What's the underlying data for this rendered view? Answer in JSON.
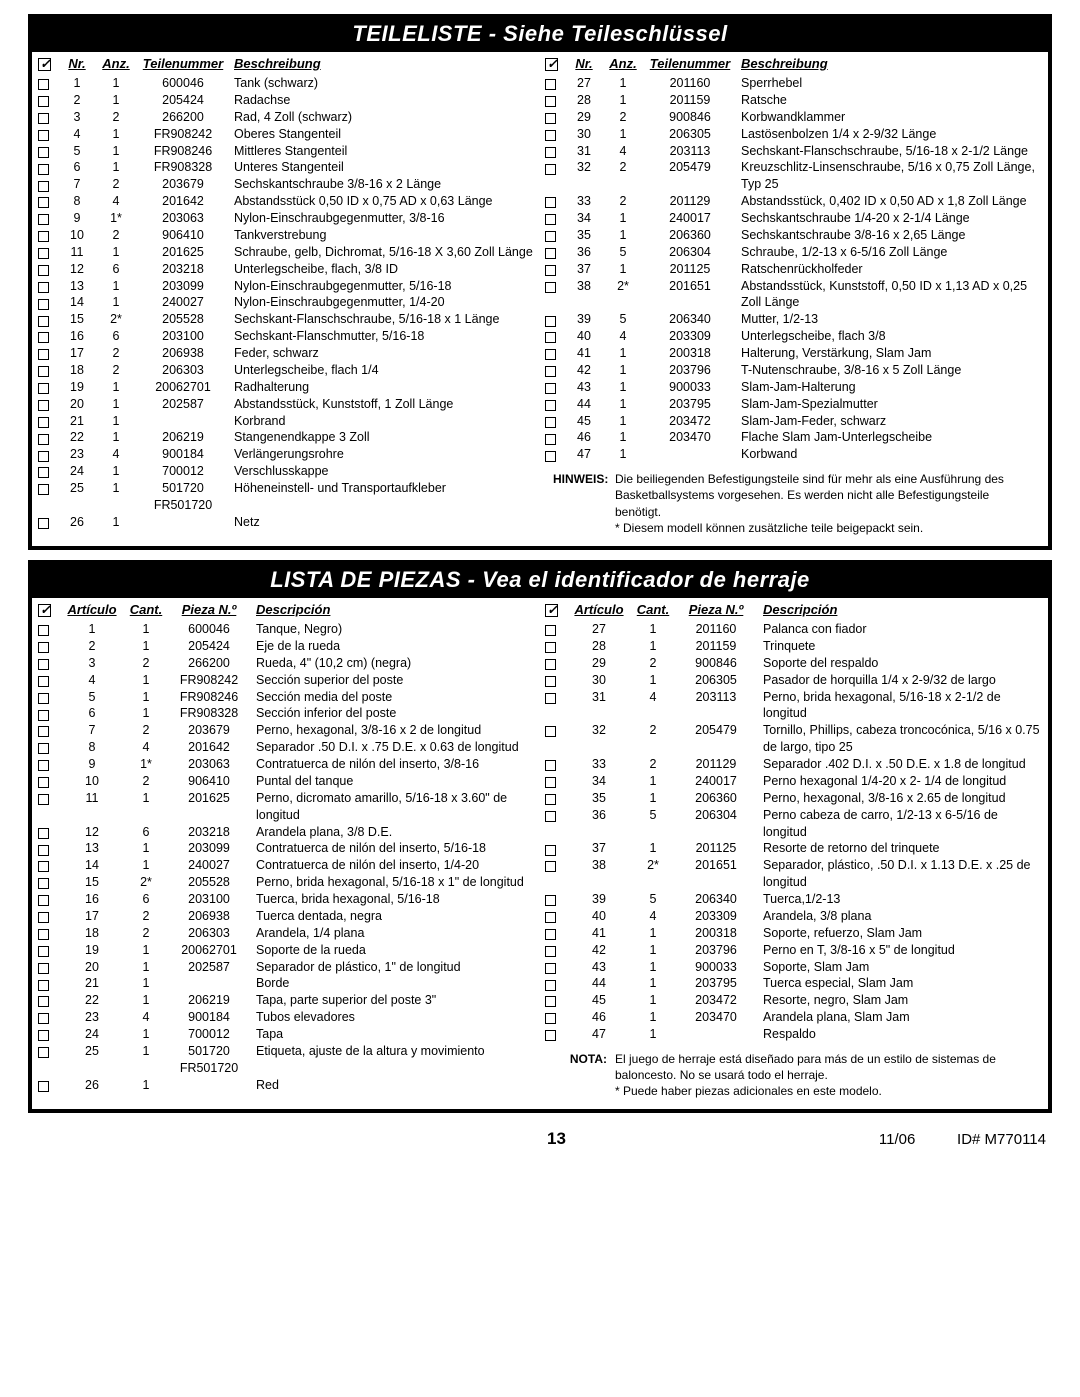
{
  "de": {
    "title": "TEILELISTE - Siehe Teileschlüssel",
    "headers": {
      "nr": "Nr.",
      "qty": "Anz.",
      "part": "Teilenummer",
      "desc": "Beschreibung"
    },
    "left": [
      {
        "n": "1",
        "q": "1",
        "p": "600046",
        "d": "Tank (schwarz)"
      },
      {
        "n": "2",
        "q": "1",
        "p": "205424",
        "d": "Radachse"
      },
      {
        "n": "3",
        "q": "2",
        "p": "266200",
        "d": "Rad, 4 Zoll (schwarz)"
      },
      {
        "n": "4",
        "q": "1",
        "p": "FR908242",
        "d": "Oberes Stangenteil"
      },
      {
        "n": "5",
        "q": "1",
        "p": "FR908246",
        "d": "Mittleres Stangenteil"
      },
      {
        "n": "6",
        "q": "1",
        "p": "FR908328",
        "d": "Unteres Stangenteil"
      },
      {
        "n": "7",
        "q": "2",
        "p": "203679",
        "d": "Sechskantschraube 3/8-16 x 2 Länge"
      },
      {
        "n": "8",
        "q": "4",
        "p": "201642",
        "d": "Abstandsstück 0,50 ID x 0,75 AD x 0,63 Länge"
      },
      {
        "n": "9",
        "q": "1*",
        "p": "203063",
        "d": "Nylon-Einschraubgegenmutter, 3/8-16"
      },
      {
        "n": "10",
        "q": "2",
        "p": "906410",
        "d": "Tankverstrebung"
      },
      {
        "n": "11",
        "q": "1",
        "p": "201625",
        "d": "Schraube, gelb, Dichromat, 5/16-18 X 3,60 Zoll Länge"
      },
      {
        "n": "12",
        "q": "6",
        "p": "203218",
        "d": "Unterlegscheibe, flach, 3/8 ID"
      },
      {
        "n": "13",
        "q": "1",
        "p": "203099",
        "d": "Nylon-Einschraubgegenmutter, 5/16-18"
      },
      {
        "n": "14",
        "q": "1",
        "p": "240027",
        "d": "Nylon-Einschraubgegenmutter, 1/4-20"
      },
      {
        "n": "15",
        "q": "2*",
        "p": "205528",
        "d": "Sechskant-Flanschschraube, 5/16-18 x 1 Länge"
      },
      {
        "n": "16",
        "q": "6",
        "p": "203100",
        "d": "Sechskant-Flanschmutter, 5/16-18"
      },
      {
        "n": "17",
        "q": "2",
        "p": "206938",
        "d": "Feder, schwarz"
      },
      {
        "n": "18",
        "q": "2",
        "p": "206303",
        "d": "Unterlegscheibe, flach 1/4"
      },
      {
        "n": "19",
        "q": "1",
        "p": "20062701",
        "d": "Radhalterung"
      },
      {
        "n": "20",
        "q": "1",
        "p": "202587",
        "d": "Abstandsstück, Kunststoff, 1 Zoll Länge"
      },
      {
        "n": "21",
        "q": "1",
        "p": "",
        "d": "Korbrand"
      },
      {
        "n": "22",
        "q": "1",
        "p": "206219",
        "d": "Stangenendkappe 3 Zoll"
      },
      {
        "n": "23",
        "q": "4",
        "p": "900184",
        "d": "Verlängerungsrohre"
      },
      {
        "n": "24",
        "q": "1",
        "p": "700012",
        "d": "Verschlusskappe"
      },
      {
        "n": "25",
        "q": "1",
        "p": "501720 FR501720",
        "d": "Höheneinstell- und Transportaufkleber"
      },
      {
        "n": "26",
        "q": "1",
        "p": "",
        "d": "Netz"
      }
    ],
    "right": [
      {
        "n": "27",
        "q": "1",
        "p": "201160",
        "d": "Sperrhebel"
      },
      {
        "n": "28",
        "q": "1",
        "p": "201159",
        "d": "Ratsche"
      },
      {
        "n": "29",
        "q": "2",
        "p": "900846",
        "d": "Korbwandklammer"
      },
      {
        "n": "30",
        "q": "1",
        "p": "206305",
        "d": "Lastösenbolzen 1/4 x 2-9/32 Länge"
      },
      {
        "n": "31",
        "q": "4",
        "p": "203113",
        "d": "Sechskant-Flanschschraube, 5/16-18 x 2-1/2 Länge"
      },
      {
        "n": "32",
        "q": "2",
        "p": "205479",
        "d": "Kreuzschlitz-Linsenschraube, 5/16 x 0,75 Zoll Länge, Typ 25"
      },
      {
        "n": "33",
        "q": "2",
        "p": "201129",
        "d": "Abstandsstück, 0,402 ID x 0,50 AD x 1,8 Zoll Länge"
      },
      {
        "n": "34",
        "q": "1",
        "p": "240017",
        "d": "Sechskantschraube 1/4-20 x 2-1/4 Länge"
      },
      {
        "n": "35",
        "q": "1",
        "p": "206360",
        "d": "Sechskantschraube 3/8-16 x 2,65 Länge"
      },
      {
        "n": "36",
        "q": "5",
        "p": "206304",
        "d": "Schraube, 1/2-13 x 6-5/16 Zoll Länge"
      },
      {
        "n": "37",
        "q": "1",
        "p": "201125",
        "d": "Ratschenrückholfeder"
      },
      {
        "n": "38",
        "q": "2*",
        "p": "201651",
        "d": "Abstandsstück, Kunststoff, 0,50 ID x 1,13 AD x 0,25 Zoll Länge"
      },
      {
        "n": "39",
        "q": "5",
        "p": "206340",
        "d": "Mutter, 1/2-13"
      },
      {
        "n": "40",
        "q": "4",
        "p": "203309",
        "d": "Unterlegscheibe, flach 3/8"
      },
      {
        "n": "41",
        "q": "1",
        "p": "200318",
        "d": "Halterung, Verstärkung, Slam Jam"
      },
      {
        "n": "42",
        "q": "1",
        "p": "203796",
        "d": "T-Nutenschraube, 3/8-16 x 5 Zoll Länge"
      },
      {
        "n": "43",
        "q": "1",
        "p": "900033",
        "d": "Slam-Jam-Halterung"
      },
      {
        "n": "44",
        "q": "1",
        "p": "203795",
        "d": "Slam-Jam-Spezialmutter"
      },
      {
        "n": "45",
        "q": "1",
        "p": "203472",
        "d": "Slam-Jam-Feder, schwarz"
      },
      {
        "n": "46",
        "q": "1",
        "p": "203470",
        "d": "Flache Slam Jam-Unterlegscheibe"
      },
      {
        "n": "47",
        "q": "1",
        "p": "",
        "d": "Korbwand"
      }
    ],
    "note_label": "HINWEIS:",
    "note_text": "Die beiliegenden Befestigungsteile sind für mehr als eine Ausführung des Basketballsystems vorgesehen.  Es werden nicht alle Befestigungsteile benötigt.",
    "note_star": "*  Diesem modell können zusätzliche teile beigepackt sein."
  },
  "es": {
    "title": "LISTA DE PIEZAS - Vea el identificador de herraje",
    "headers": {
      "nr": "Artículo",
      "qty": "Cant.",
      "part": "Pieza N.º",
      "desc": "Descripción"
    },
    "left": [
      {
        "n": "1",
        "q": "1",
        "p": "600046",
        "d": "Tanque, Negro)"
      },
      {
        "n": "2",
        "q": "1",
        "p": "205424",
        "d": "Eje de la rueda"
      },
      {
        "n": "3",
        "q": "2",
        "p": "266200",
        "d": "Rueda, 4\" (10,2 cm) (negra)"
      },
      {
        "n": "4",
        "q": "1",
        "p": "FR908242",
        "d": "Sección superior del poste"
      },
      {
        "n": "5",
        "q": "1",
        "p": "FR908246",
        "d": "Sección media del poste"
      },
      {
        "n": "6",
        "q": "1",
        "p": "FR908328",
        "d": "Sección inferior del poste"
      },
      {
        "n": "7",
        "q": "2",
        "p": "203679",
        "d": "Perno, hexagonal, 3/8-16 x 2 de longitud"
      },
      {
        "n": "8",
        "q": "4",
        "p": "201642",
        "d": "Separador .50 D.I. x .75 D.E. x 0.63 de longitud"
      },
      {
        "n": "9",
        "q": "1*",
        "p": "203063",
        "d": "Contratuerca de nilón del inserto, 3/8-16"
      },
      {
        "n": "10",
        "q": "2",
        "p": "906410",
        "d": "Puntal del tanque"
      },
      {
        "n": "11",
        "q": "1",
        "p": "201625",
        "d": "Perno, dicromato amarillo, 5/16-18 x 3.60\" de longitud"
      },
      {
        "n": "12",
        "q": "6",
        "p": "203218",
        "d": "Arandela plana, 3/8 D.E."
      },
      {
        "n": "13",
        "q": "1",
        "p": "203099",
        "d": "Contratuerca de nilón del inserto, 5/16-18"
      },
      {
        "n": "14",
        "q": "1",
        "p": "240027",
        "d": "Contratuerca de nilón del inserto, 1/4-20"
      },
      {
        "n": "15",
        "q": "2*",
        "p": "205528",
        "d": "Perno, brida hexagonal, 5/16-18 x 1\" de longitud"
      },
      {
        "n": "16",
        "q": "6",
        "p": "203100",
        "d": "Tuerca, brida hexagonal, 5/16-18"
      },
      {
        "n": "17",
        "q": "2",
        "p": "206938",
        "d": "Tuerca dentada, negra"
      },
      {
        "n": "18",
        "q": "2",
        "p": "206303",
        "d": "Arandela, 1/4 plana"
      },
      {
        "n": "19",
        "q": "1",
        "p": "20062701",
        "d": "Soporte de la rueda"
      },
      {
        "n": "20",
        "q": "1",
        "p": "202587",
        "d": "Separador de plástico, 1\" de longitud"
      },
      {
        "n": "21",
        "q": "1",
        "p": "",
        "d": "Borde"
      },
      {
        "n": "22",
        "q": "1",
        "p": "206219",
        "d": "Tapa, parte superior del poste 3\""
      },
      {
        "n": "23",
        "q": "4",
        "p": "900184",
        "d": "Tubos elevadores"
      },
      {
        "n": "24",
        "q": "1",
        "p": "700012",
        "d": "Tapa"
      },
      {
        "n": "25",
        "q": "1",
        "p": "501720 FR501720",
        "d": "Etiqueta, ajuste de la altura y movimiento"
      },
      {
        "n": "26",
        "q": "1",
        "p": "",
        "d": "Red"
      }
    ],
    "right": [
      {
        "n": "27",
        "q": "1",
        "p": "201160",
        "d": "Palanca con fiador"
      },
      {
        "n": "28",
        "q": "1",
        "p": "201159",
        "d": "Trinquete"
      },
      {
        "n": "29",
        "q": "2",
        "p": "900846",
        "d": "Soporte del respaldo"
      },
      {
        "n": "30",
        "q": "1",
        "p": "206305",
        "d": "Pasador de horquilla 1/4 x 2-9/32 de largo"
      },
      {
        "n": "31",
        "q": "4",
        "p": "203113",
        "d": "Perno, brida hexagonal, 5/16-18 x 2-1/2 de longitud"
      },
      {
        "n": "32",
        "q": "2",
        "p": "205479",
        "d": "Tornillo, Phillips, cabeza troncocónica, 5/16 x 0.75 de largo, tipo 25"
      },
      {
        "n": "33",
        "q": "2",
        "p": "201129",
        "d": "Separador .402 D.I. x .50 D.E. x 1.8 de longitud"
      },
      {
        "n": "34",
        "q": "1",
        "p": "240017",
        "d": "Perno hexagonal 1/4-20 x 2- 1/4 de longitud"
      },
      {
        "n": "35",
        "q": "1",
        "p": "206360",
        "d": "Perno, hexagonal, 3/8-16 x 2.65 de longitud"
      },
      {
        "n": "36",
        "q": "5",
        "p": "206304",
        "d": "Perno cabeza de carro, 1/2-13 x 6-5/16 de longitud"
      },
      {
        "n": "37",
        "q": "1",
        "p": "201125",
        "d": "Resorte de retorno del trinquete"
      },
      {
        "n": "38",
        "q": "2*",
        "p": "201651",
        "d": "Separador, plástico, .50 D.I. x 1.13 D.E. x .25 de longitud"
      },
      {
        "n": "39",
        "q": "5",
        "p": "206340",
        "d": "Tuerca,1/2-13"
      },
      {
        "n": "40",
        "q": "4",
        "p": "203309",
        "d": "Arandela, 3/8 plana"
      },
      {
        "n": "41",
        "q": "1",
        "p": "200318",
        "d": "Soporte, refuerzo, Slam Jam"
      },
      {
        "n": "42",
        "q": "1",
        "p": "203796",
        "d": "Perno en T, 3/8-16 x 5\" de longitud"
      },
      {
        "n": "43",
        "q": "1",
        "p": "900033",
        "d": "Soporte, Slam Jam"
      },
      {
        "n": "44",
        "q": "1",
        "p": "203795",
        "d": "Tuerca especial, Slam Jam"
      },
      {
        "n": "45",
        "q": "1",
        "p": "203472",
        "d": "Resorte, negro, Slam Jam"
      },
      {
        "n": "46",
        "q": "1",
        "p": "203470",
        "d": "Arandela plana, Slam Jam"
      },
      {
        "n": "47",
        "q": "1",
        "p": "",
        "d": "Respaldo"
      }
    ],
    "note_label": "NOTA:",
    "note_text": "El juego de herraje está diseñado para más de un estilo de sistemas de baloncesto. No se usará todo el herraje.",
    "note_star": "*  Puede haber piezas adicionales en este modelo."
  },
  "footer": {
    "page": "13",
    "date": "11/06",
    "id": "ID#   M770114"
  }
}
